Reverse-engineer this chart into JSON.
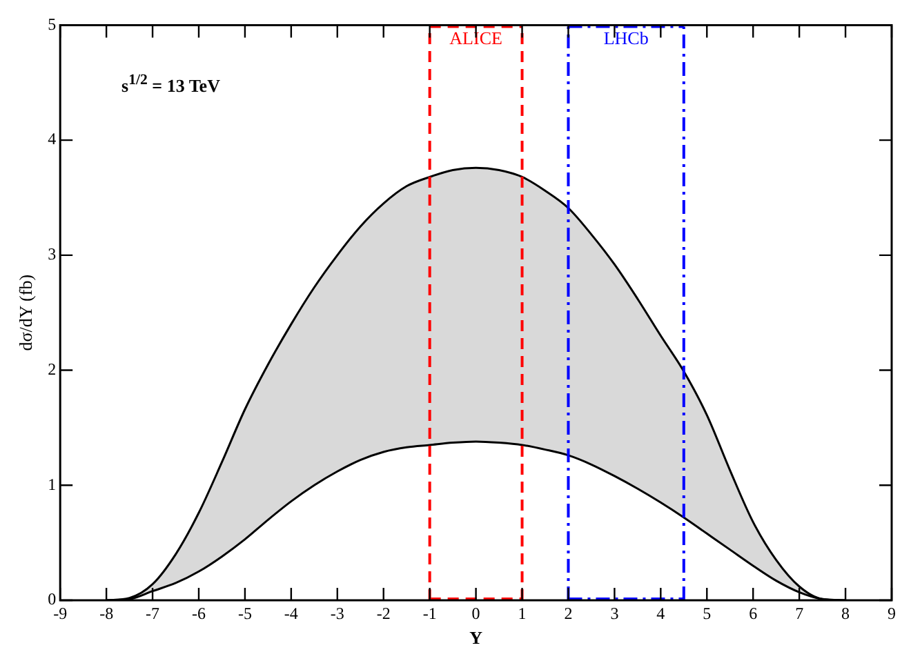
{
  "chart_data": {
    "type": "line",
    "xlabel": "Y",
    "ylabel": "dσ/dY (fb)",
    "x": [
      -8,
      -7.5,
      -7,
      -6.5,
      -6,
      -5.5,
      -5,
      -4.5,
      -4,
      -3.5,
      -3,
      -2.5,
      -2,
      -1.5,
      -1,
      -0.5,
      0,
      0.5,
      1,
      1.5,
      2,
      2.5,
      3,
      3.5,
      4,
      4.5,
      5,
      5.5,
      6,
      6.5,
      7,
      7.5,
      8
    ],
    "series": [
      {
        "type": "line",
        "color": "#000000",
        "values": [
          0,
          0.01,
          0.08,
          0.15,
          0.25,
          0.38,
          0.53,
          0.7,
          0.86,
          1.0,
          1.12,
          1.22,
          1.29,
          1.33,
          1.35,
          1.37,
          1.38,
          1.37,
          1.35,
          1.31,
          1.26,
          1.18,
          1.08,
          0.97,
          0.85,
          0.72,
          0.58,
          0.44,
          0.3,
          0.17,
          0.07,
          0.01,
          0
        ]
      },
      {
        "type": "area",
        "color": "#d9d9d9",
        "values": [
          0,
          0.02,
          0.14,
          0.4,
          0.76,
          1.2,
          1.66,
          2.05,
          2.4,
          2.72,
          3.0,
          3.25,
          3.45,
          3.6,
          3.68,
          3.74,
          3.76,
          3.74,
          3.68,
          3.56,
          3.41,
          3.18,
          2.92,
          2.62,
          2.3,
          1.99,
          1.61,
          1.13,
          0.68,
          0.35,
          0.12,
          0.01,
          0
        ]
      }
    ],
    "xlim": [
      -9,
      9
    ],
    "xticks": [
      -9,
      -8,
      -7,
      -6,
      -5,
      -4,
      -3,
      -2,
      -1,
      0,
      1,
      2,
      3,
      4,
      5,
      6,
      7,
      8,
      9
    ],
    "ylim": [
      0,
      5
    ],
    "yticks": [
      0,
      1,
      2,
      3,
      4,
      5
    ],
    "ref_lines": [
      {
        "axis": "x",
        "value": -1,
        "label": "ALICE",
        "color": "#ff0000",
        "line_style": "dashed"
      },
      {
        "axis": "x",
        "value": 1,
        "label": null,
        "color": "#ff0000",
        "line_style": "dashed"
      },
      {
        "axis": "x",
        "value": 2,
        "label": "LHCb",
        "color": "#0000ff",
        "line_style": "dashdot"
      },
      {
        "axis": "x",
        "value": 4.5,
        "label": null,
        "color": "#0000ff",
        "line_style": "dashdot"
      }
    ],
    "annotations": [
      "s$^{1/2}$ = 13 TeV"
    ],
    "grid": false,
    "legend": false,
    "marker": "none",
    "line_style": "solid"
  }
}
